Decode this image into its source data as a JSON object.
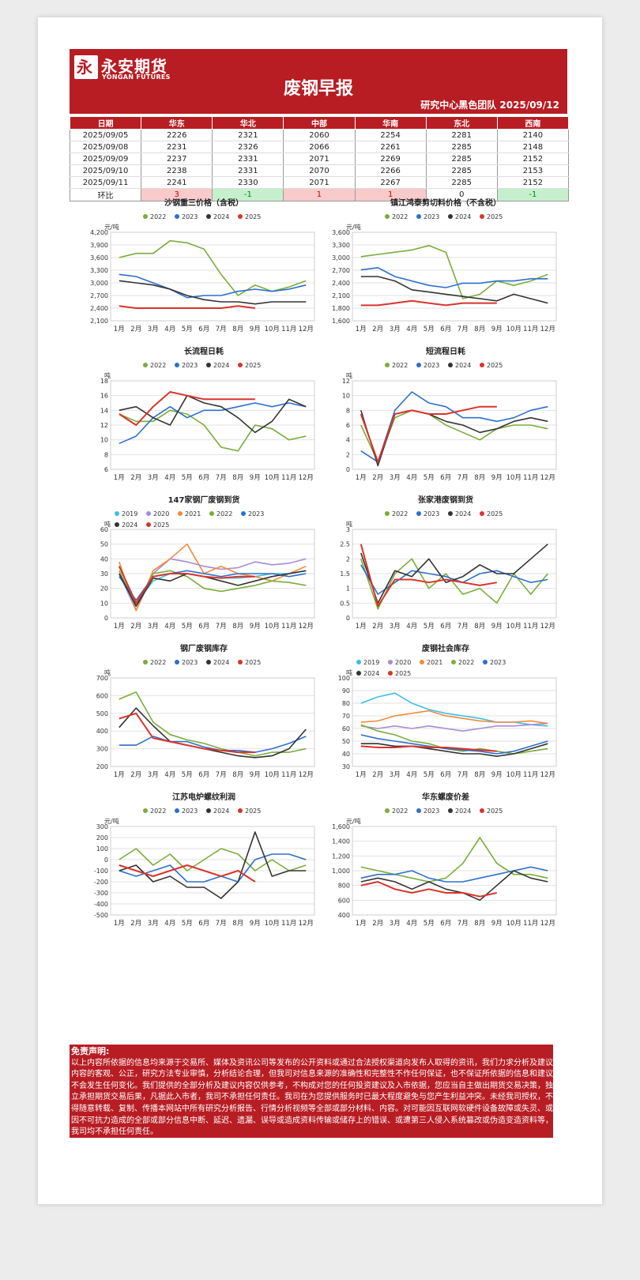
{
  "header": {
    "logo_cn": "永安期货",
    "logo_en": "YONGAN FUTURES",
    "logo_mark": "永",
    "title": "废钢早报",
    "subtitle": "研究中心黑色团队  2025/09/12"
  },
  "price_table": {
    "headers": [
      "日期",
      "华东",
      "华北",
      "中部",
      "华南",
      "东北",
      "西南"
    ],
    "rows": [
      [
        "2025/09/05",
        "2226",
        "2321",
        "2060",
        "2254",
        "2281",
        "2140"
      ],
      [
        "2025/09/08",
        "2231",
        "2326",
        "2066",
        "2261",
        "2285",
        "2148"
      ],
      [
        "2025/09/09",
        "2237",
        "2331",
        "2071",
        "2269",
        "2285",
        "2152"
      ],
      [
        "2025/09/10",
        "2238",
        "2331",
        "2070",
        "2266",
        "2285",
        "2153"
      ],
      [
        "2025/09/11",
        "2241",
        "2330",
        "2071",
        "2267",
        "2285",
        "2152"
      ]
    ],
    "change_label": "环比",
    "change": [
      "3",
      "-1",
      "1",
      "1",
      "0",
      "-1"
    ],
    "change_dir": [
      "up",
      "down",
      "up",
      "up",
      "flat",
      "down"
    ]
  },
  "colors": {
    "2019": "#3dbde8",
    "2020": "#a78bd6",
    "2021": "#f08a3c",
    "2022": "#7aad3a",
    "2023": "#2e6fcf",
    "2024": "#333333",
    "2025": "#d9342b",
    "c2022": "#3dbde8",
    "c2023": "#a78bd6",
    "c2024": "#333333",
    "c2025": "#d9342b"
  },
  "months": [
    "1月",
    "2月",
    "3月",
    "4月",
    "5月",
    "6月",
    "7月",
    "8月",
    "9月",
    "10月",
    "11月",
    "12月"
  ],
  "chart_data": [
    {
      "type": "line",
      "title": "沙钢重三价格（含税）",
      "unit": "元/吨",
      "ylim": [
        2100,
        4200
      ],
      "yticks": [
        "2,100",
        "2,400",
        "2,700",
        "3,000",
        "3,300",
        "3,600",
        "3,900",
        "4,200"
      ],
      "series": [
        {
          "name": "2022",
          "values": [
            3600,
            3700,
            3700,
            4000,
            3950,
            3800,
            3200,
            2700,
            2950,
            2800,
            2900,
            3050
          ]
        },
        {
          "name": "2023",
          "values": [
            3200,
            3150,
            3000,
            2850,
            2650,
            2700,
            2700,
            2800,
            2850,
            2800,
            2850,
            2950
          ]
        },
        {
          "name": "2024",
          "values": [
            3050,
            3000,
            2950,
            2850,
            2700,
            2600,
            2550,
            2550,
            2500,
            2550,
            2550,
            2550
          ]
        },
        {
          "name": "2025",
          "values": [
            2450,
            2400,
            2400,
            2400,
            2400,
            2400,
            2400,
            2450,
            2400
          ]
        }
      ]
    },
    {
      "type": "line",
      "title": "镇江鸿泰剪切料价格（不含税）",
      "unit": "元/吨",
      "ylim": [
        1600,
        3600
      ],
      "yticks": [
        "1,600",
        "1,800",
        "2,100",
        "2,400",
        "2,700",
        "3,000",
        "3,300",
        "3,600"
      ],
      "series": [
        {
          "name": "2022",
          "values": [
            3050,
            3100,
            3150,
            3200,
            3300,
            3150,
            2100,
            2200,
            2500,
            2400,
            2500,
            2650
          ]
        },
        {
          "name": "2023",
          "values": [
            2750,
            2800,
            2600,
            2500,
            2400,
            2350,
            2450,
            2450,
            2500,
            2500,
            2550,
            2550
          ]
        },
        {
          "name": "2024",
          "values": [
            2600,
            2600,
            2500,
            2300,
            2250,
            2200,
            2150,
            2100,
            2050,
            2200,
            2100,
            2000
          ]
        },
        {
          "name": "2025",
          "values": [
            1950,
            1950,
            2000,
            2050,
            2000,
            1950,
            2000,
            2000,
            2000
          ]
        }
      ]
    },
    {
      "type": "line",
      "title": "长流程日耗",
      "unit": "吨",
      "ylim": [
        6,
        18
      ],
      "yticks": [
        "6",
        "8",
        "10",
        "12",
        "14",
        "16",
        "18"
      ],
      "series": [
        {
          "name": "2022",
          "values": [
            13.5,
            12.5,
            12.5,
            14,
            13.5,
            12,
            9,
            8.5,
            12,
            11.5,
            10,
            10.5
          ]
        },
        {
          "name": "2023",
          "values": [
            9.5,
            10.5,
            13,
            14.5,
            13,
            14,
            14,
            14.5,
            15,
            14.5,
            15,
            14.5
          ]
        },
        {
          "name": "2024",
          "values": [
            14,
            14.5,
            13,
            12,
            16,
            15,
            14.5,
            13,
            11,
            12.5,
            15.5,
            14.5
          ]
        },
        {
          "name": "2025",
          "values": [
            13.5,
            12,
            14.5,
            16.5,
            16,
            15.5,
            15.5,
            15.5,
            15.5
          ]
        }
      ]
    },
    {
      "type": "line",
      "title": "短流程日耗",
      "unit": "吨",
      "ylim": [
        0,
        12
      ],
      "yticks": [
        "0",
        "2",
        "4",
        "6",
        "8",
        "10",
        "12"
      ],
      "series": [
        {
          "name": "2022",
          "values": [
            6,
            1,
            7,
            8,
            7.5,
            6,
            5,
            4,
            5.5,
            6,
            6,
            5.5
          ]
        },
        {
          "name": "2023",
          "values": [
            2.5,
            1,
            8,
            10.5,
            9,
            8.5,
            7,
            7,
            6.5,
            7,
            8,
            8.5
          ]
        },
        {
          "name": "2024",
          "values": [
            8,
            0.5,
            7.5,
            8,
            7.5,
            6.5,
            6,
            5,
            5.5,
            6.5,
            7,
            6.5
          ]
        },
        {
          "name": "2025",
          "values": [
            7.5,
            1,
            7.5,
            8,
            7.5,
            7.5,
            8,
            8.5,
            8.5
          ]
        }
      ]
    },
    {
      "type": "line",
      "title": "147家钢厂废钢到货",
      "unit": "吨",
      "ylim": [
        0,
        60
      ],
      "yticks": [
        "0",
        "10",
        "20",
        "30",
        "40",
        "50",
        "60"
      ],
      "series": [
        {
          "name": "2019",
          "values": [
            35,
            10,
            25,
            30,
            30,
            28,
            27,
            27,
            28,
            30,
            30,
            32
          ]
        },
        {
          "name": "2020",
          "values": [
            30,
            5,
            30,
            40,
            38,
            35,
            33,
            34,
            38,
            36,
            37,
            40
          ]
        },
        {
          "name": "2021",
          "values": [
            38,
            5,
            32,
            40,
            50,
            30,
            35,
            30,
            28,
            25,
            30,
            35
          ]
        },
        {
          "name": "2022",
          "values": [
            32,
            8,
            30,
            32,
            28,
            20,
            18,
            20,
            22,
            25,
            24,
            22
          ]
        },
        {
          "name": "2023",
          "values": [
            28,
            12,
            28,
            30,
            32,
            30,
            28,
            30,
            30,
            30,
            28,
            30
          ]
        },
        {
          "name": "2024",
          "values": [
            30,
            8,
            27,
            25,
            30,
            28,
            25,
            22,
            25,
            28,
            30,
            32
          ]
        },
        {
          "name": "2025",
          "values": [
            35,
            10,
            28,
            30,
            30,
            28,
            27,
            28,
            28
          ]
        }
      ]
    },
    {
      "type": "line",
      "title": "张家港废钢到货",
      "unit": "吨",
      "ylim": [
        0,
        3
      ],
      "yticks": [
        "0",
        "0.5",
        "1",
        "1.5",
        "2",
        "2.5",
        "3"
      ],
      "series": [
        {
          "name": "2022",
          "values": [
            2,
            0.3,
            1.5,
            2,
            1,
            1.5,
            0.8,
            1,
            0.5,
            1.5,
            0.8,
            1.5
          ]
        },
        {
          "name": "2023",
          "values": [
            1.8,
            0.8,
            1.2,
            1.6,
            1.5,
            1.4,
            1.2,
            1.5,
            1.6,
            1.4,
            1.2,
            1.3
          ]
        },
        {
          "name": "2024",
          "values": [
            2.2,
            0.5,
            1.6,
            1.4,
            2,
            1.2,
            1.4,
            1.8,
            1.5,
            1.5,
            2,
            2.5
          ]
        },
        {
          "name": "2025",
          "values": [
            2.5,
            0.4,
            1.3,
            1.3,
            1.2,
            1.3,
            1.2,
            1.1,
            1.2
          ]
        }
      ]
    },
    {
      "type": "line",
      "title": "钢厂废钢库存",
      "unit": "吨",
      "ylim": [
        200,
        700
      ],
      "yticks": [
        "200",
        "300",
        "400",
        "500",
        "600",
        "700"
      ],
      "series": [
        {
          "name": "2022",
          "values": [
            580,
            620,
            450,
            380,
            350,
            330,
            300,
            280,
            260,
            280,
            280,
            300
          ]
        },
        {
          "name": "2023",
          "values": [
            320,
            320,
            370,
            340,
            340,
            310,
            290,
            290,
            280,
            300,
            330,
            370
          ]
        },
        {
          "name": "2024",
          "values": [
            420,
            530,
            430,
            340,
            320,
            300,
            280,
            260,
            250,
            260,
            300,
            410
          ]
        },
        {
          "name": "2025",
          "values": [
            470,
            500,
            360,
            340,
            320,
            300,
            290,
            280,
            280
          ]
        }
      ]
    },
    {
      "type": "line",
      "title": "废钢社会库存",
      "unit": "吨",
      "ylim": [
        30,
        100
      ],
      "yticks": [
        "30",
        "40",
        "50",
        "60",
        "70",
        "80",
        "90",
        "100"
      ],
      "series": [
        {
          "name": "2019",
          "values": [
            80,
            85,
            88,
            80,
            75,
            72,
            70,
            68,
            65,
            65,
            63,
            62
          ]
        },
        {
          "name": "2020",
          "values": [
            62,
            60,
            62,
            60,
            62,
            60,
            58,
            60,
            62,
            62,
            63,
            64
          ]
        },
        {
          "name": "2021",
          "values": [
            65,
            66,
            70,
            72,
            74,
            70,
            68,
            66,
            65,
            65,
            66,
            64
          ]
        },
        {
          "name": "2022",
          "values": [
            63,
            58,
            55,
            50,
            48,
            44,
            42,
            44,
            42,
            40,
            42,
            44
          ]
        },
        {
          "name": "2023",
          "values": [
            55,
            52,
            50,
            48,
            46,
            44,
            43,
            42,
            40,
            42,
            46,
            50
          ]
        },
        {
          "name": "2024",
          "values": [
            48,
            48,
            46,
            46,
            44,
            42,
            40,
            40,
            38,
            40,
            44,
            48
          ]
        },
        {
          "name": "2025",
          "values": [
            46,
            45,
            45,
            46,
            45,
            45,
            44,
            43,
            42
          ]
        }
      ]
    },
    {
      "type": "line",
      "title": "江苏电炉螺纹利润",
      "unit": "元/吨",
      "ylim": [
        -500,
        300
      ],
      "yticks": [
        "-500",
        "-400",
        "-300",
        "-200",
        "-100",
        "0",
        "100",
        "200",
        "300"
      ],
      "series": [
        {
          "name": "2022",
          "values": [
            0,
            100,
            -50,
            50,
            -100,
            0,
            100,
            50,
            -100,
            0,
            -100,
            -50
          ]
        },
        {
          "name": "2023",
          "values": [
            -100,
            -150,
            -100,
            -50,
            -200,
            -200,
            -150,
            -200,
            0,
            50,
            50,
            0
          ]
        },
        {
          "name": "2024",
          "values": [
            -100,
            -50,
            -200,
            -150,
            -250,
            -250,
            -350,
            -200,
            250,
            -150,
            -100,
            -100
          ]
        },
        {
          "name": "2025",
          "values": [
            -50,
            -100,
            -150,
            -100,
            -50,
            -100,
            -150,
            -100,
            -200
          ]
        }
      ]
    },
    {
      "type": "line",
      "title": "华东螺废价差",
      "unit": "元/吨",
      "ylim": [
        400,
        1600
      ],
      "yticks": [
        "400",
        "600",
        "800",
        "1,000",
        "1,200",
        "1,400",
        "1,600"
      ],
      "series": [
        {
          "name": "2022",
          "values": [
            1050,
            1000,
            950,
            900,
            850,
            900,
            1100,
            1450,
            1100,
            950,
            950,
            900
          ]
        },
        {
          "name": "2023",
          "values": [
            900,
            950,
            950,
            1000,
            900,
            850,
            850,
            900,
            950,
            1000,
            1050,
            1000
          ]
        },
        {
          "name": "2024",
          "values": [
            850,
            900,
            850,
            750,
            850,
            750,
            700,
            600,
            800,
            1000,
            900,
            850
          ]
        },
        {
          "name": "2025",
          "values": [
            800,
            850,
            750,
            700,
            750,
            700,
            700,
            650,
            700
          ]
        }
      ]
    }
  ],
  "disclaimer": {
    "title": "免责声明:",
    "text": "以上内容所依据的信息均来源于交易所、媒体及资讯公司等发布的公开资料或通过合法授权渠道向发布人取得的资讯，我们力求分析及建议内容的客观、公正，研究方法专业审慎，分析结论合理，但我司对信息来源的准确性和完整性不作任何保证，也不保证所依据的信息和建议不会发生任何变化。我们提供的全部分析及建议内容仅供参考，不构成对您的任何投资建议及入市依据，您应当自主做出期货交易决策，独立承担期货交易后果，凡据此入市者，我司不承担任何责任。我司在为您提供服务时已最大程度避免与您产生利益冲突。未经我司授权，不得随意转载、复制、传播本网站中所有研究分析报告、行情分析视频等全部或部分材料、内容。对可能因互联网软硬件设备故障或失灵、或因不可抗力造成的全部或部分信息中断、延迟、遗漏、误导或造成资料传输或储存上的错误、或遭第三人侵入系统篡改或伪造变造资料等，我司均不承担任何责任。"
  }
}
